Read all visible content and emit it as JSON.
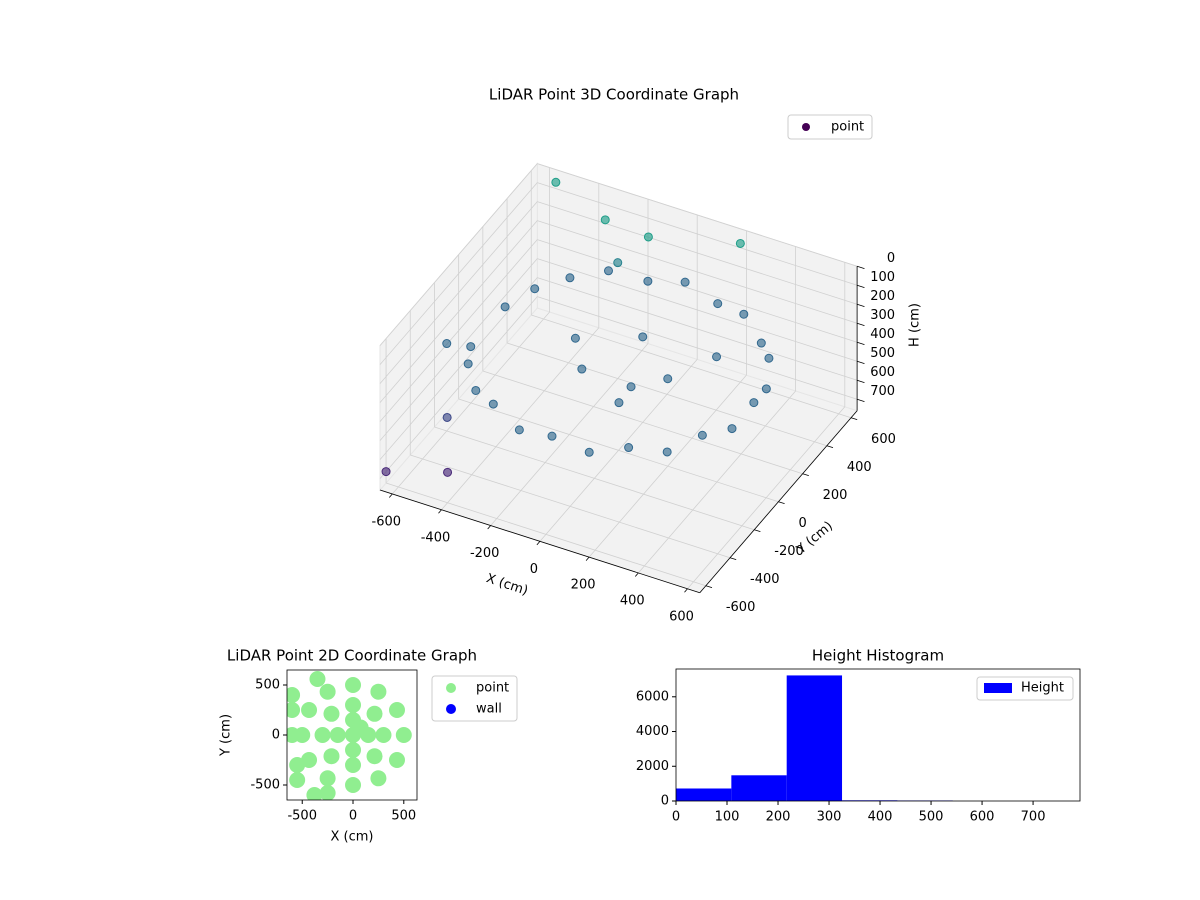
{
  "chart_data": [
    {
      "type": "scatter3d",
      "title": "LiDAR Point 3D Coordinate Graph",
      "xlabel": "X (cm)",
      "ylabel": "Y (cm)",
      "zlabel": "H (cm)",
      "xlim": [
        -650,
        650
      ],
      "ylim": [
        -650,
        650
      ],
      "zlim": [
        0,
        760
      ],
      "zinvert": true,
      "xticks": [
        -600,
        -400,
        -200,
        0,
        200,
        400,
        600
      ],
      "yticks": [
        -600,
        -400,
        -200,
        0,
        200,
        400,
        600
      ],
      "zticks": [
        0,
        100,
        200,
        300,
        400,
        500,
        600,
        700
      ],
      "grid": true,
      "legend": "upper right",
      "colormap": "viridis",
      "series": [
        {
          "name": "point",
          "color": "#440154",
          "x": [
            550,
            531,
            476,
            389,
            275,
            142,
            0,
            -142,
            -275,
            -389,
            -476,
            -531,
            531,
            476,
            389,
            275,
            142,
            0,
            -142,
            -275,
            -389,
            -476,
            -531,
            200,
            0,
            -100,
            100,
            -200,
            -550,
            -300,
            -100,
            200,
            -600,
            -500,
            -650,
            -400,
            -200,
            300,
            100
          ],
          "y": [
            0,
            142,
            275,
            389,
            476,
            531,
            550,
            531,
            476,
            389,
            275,
            142,
            -142,
            -275,
            -389,
            -476,
            -531,
            -550,
            -531,
            -476,
            -389,
            -275,
            -142,
            0,
            200,
            -100,
            -200,
            50,
            600,
            500,
            450,
            600,
            -200,
            -400,
            -600,
            -600,
            400,
            200,
            -100
          ],
          "z": [
            280,
            320,
            280,
            320,
            280,
            320,
            280,
            320,
            280,
            300,
            310,
            330,
            320,
            280,
            320,
            280,
            320,
            280,
            320,
            280,
            320,
            300,
            330,
            300,
            310,
            300,
            320,
            290,
            20,
            40,
            10,
            30,
            300,
            500,
            700,
            600,
            150,
            290,
            310
          ]
        }
      ]
    },
    {
      "type": "scatter",
      "title": "LiDAR Point 2D Coordinate Graph",
      "xlabel": "X (cm)",
      "ylabel": "Y (cm)",
      "xlim": [
        -650,
        630
      ],
      "ylim": [
        -650,
        650
      ],
      "xticks": [
        -500,
        0,
        500
      ],
      "yticks": [
        -500,
        0,
        500
      ],
      "legend": "outside right",
      "series": [
        {
          "name": "point",
          "color": "#90ee90",
          "x": [
            500,
            433,
            250,
            0,
            -250,
            -433,
            -500,
            -433,
            -250,
            0,
            250,
            433,
            300,
            212,
            0,
            -212,
            -300,
            -212,
            0,
            212,
            150,
            0,
            -150,
            0,
            75,
            0,
            -600,
            -600,
            -550,
            -550,
            -350,
            -600,
            -380,
            -250
          ],
          "y": [
            0,
            250,
            433,
            500,
            433,
            250,
            0,
            -250,
            -433,
            -500,
            -433,
            -250,
            0,
            212,
            300,
            212,
            0,
            -212,
            -300,
            -212,
            0,
            150,
            0,
            -150,
            75,
            0,
            400,
            250,
            -300,
            -450,
            560,
            0,
            -600,
            -580
          ]
        },
        {
          "name": "wall",
          "color": "#0000ff",
          "x": [],
          "y": []
        }
      ]
    },
    {
      "type": "histogram",
      "title": "Height Histogram",
      "name": "Height",
      "color": "#0000ff",
      "bins": [
        0,
        108.5,
        217,
        325.5,
        434,
        542.5,
        651,
        759.5
      ],
      "counts": [
        720,
        1480,
        7230,
        40,
        30,
        0,
        0
      ],
      "xlim": [
        0,
        792
      ],
      "ylim": [
        0,
        7600
      ],
      "xticks": [
        0,
        100,
        200,
        300,
        400,
        500,
        600,
        700
      ],
      "yticks": [
        0,
        2000,
        4000,
        6000
      ],
      "legend": "upper right"
    }
  ]
}
